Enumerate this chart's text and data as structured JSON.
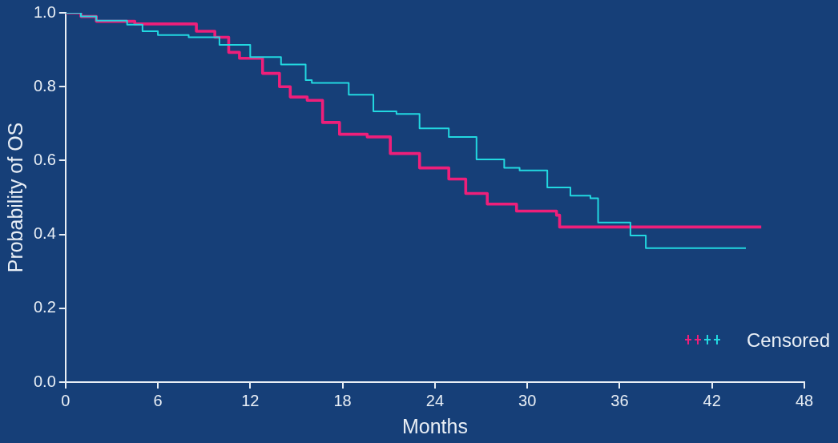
{
  "chart_data": {
    "type": "step",
    "xlabel": "Months",
    "ylabel": "Probability of OS",
    "xlim": [
      0,
      48
    ],
    "xticks": [
      0,
      6,
      12,
      18,
      24,
      30,
      36,
      42,
      48
    ],
    "ylim": [
      0,
      1
    ],
    "yticks": [
      {
        "value": 0,
        "label": "0.0"
      },
      0.2,
      0.4,
      0.6,
      0.8,
      {
        "value": 1,
        "label": "1.0"
      }
    ],
    "grid": false,
    "legend": false,
    "annotations": [
      "Censored"
    ],
    "series": [
      {
        "color": "#22d8e0",
        "x": [
          0,
          1,
          2,
          4,
          5,
          6,
          8,
          10,
          12,
          14,
          15.6,
          16,
          18.4,
          20,
          21.5,
          23,
          24.9,
          26.7,
          28.5,
          29.5,
          31.3,
          32.8,
          34.1,
          34.6,
          36.7,
          37.7,
          44.2
        ],
        "values": [
          1,
          0.99,
          0.979,
          0.968,
          0.95,
          0.94,
          0.934,
          0.913,
          0.88,
          0.86,
          0.818,
          0.81,
          0.778,
          0.733,
          0.726,
          0.687,
          0.664,
          0.603,
          0.58,
          0.573,
          0.527,
          0.505,
          0.498,
          0.432,
          0.397,
          0.363,
          0.363
        ]
      },
      {
        "color": "#ee1f7a",
        "x": [
          0,
          1,
          2,
          4.5,
          8,
          8.5,
          9.7,
          10.6,
          11.3,
          12.8,
          13.9,
          14.6,
          15.7,
          16.7,
          17.8,
          19.6,
          21.1,
          23,
          24.9,
          26,
          27.4,
          29.3,
          31.9,
          32.1,
          45.2
        ],
        "values": [
          1,
          0.99,
          0.977,
          0.97,
          0.97,
          0.95,
          0.934,
          0.893,
          0.877,
          0.836,
          0.8,
          0.772,
          0.763,
          0.703,
          0.671,
          0.664,
          0.619,
          0.58,
          0.55,
          0.511,
          0.482,
          0.463,
          0.452,
          0.42,
          0.42
        ]
      }
    ]
  }
}
